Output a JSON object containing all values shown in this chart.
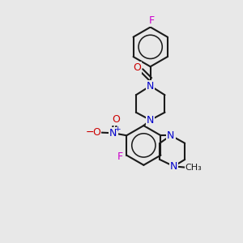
{
  "bg_color": "#e8e8e8",
  "bond_color": "#1a1a1a",
  "N_color": "#0000cc",
  "O_color": "#cc0000",
  "F_color": "#cc00cc",
  "lw": 1.5,
  "figsize": [
    3.0,
    3.0
  ],
  "dpi": 100,
  "xlim": [
    0,
    10
  ],
  "ylim": [
    0,
    10
  ]
}
